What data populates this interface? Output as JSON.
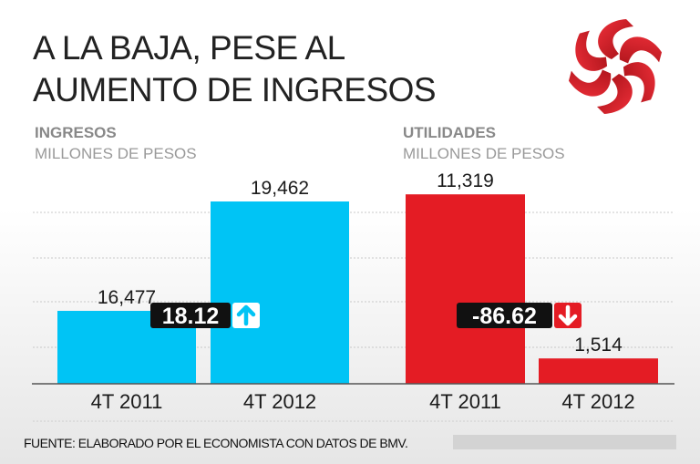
{
  "title_lines": [
    "A LA BAJA, PESE AL",
    "AUMENTO DE INGRESOS"
  ],
  "footer": "FUENTE: ELABORADO POR EL ECONOMISTA CON DATOS DE BMV.",
  "logo_icon": "red-pinwheel-logo",
  "chart_data": [
    {
      "type": "bar",
      "title": "INGRESOS",
      "subtitle": "MILLONES DE PESOS",
      "categories": [
        "4T 2011",
        "4T 2012"
      ],
      "values": [
        16477,
        19462
      ],
      "value_labels": [
        "16,477",
        "19,462"
      ],
      "ylim": [
        14487,
        19960
      ],
      "color": "#00c4f5",
      "change": {
        "label": "18.12",
        "direction": "up",
        "icon": "arrow-up-icon"
      }
    },
    {
      "type": "bar",
      "title": "UTILIDADES",
      "subtitle": "MILLONES DE PESOS",
      "categories": [
        "4T 2011",
        "4T 2012"
      ],
      "values": [
        11319,
        1514
      ],
      "value_labels": [
        "11,319",
        "1,514"
      ],
      "ylim": [
        0,
        11983
      ],
      "color": "#e41c24",
      "change": {
        "label": "-86.62",
        "direction": "down",
        "icon": "arrow-down-icon"
      }
    }
  ]
}
